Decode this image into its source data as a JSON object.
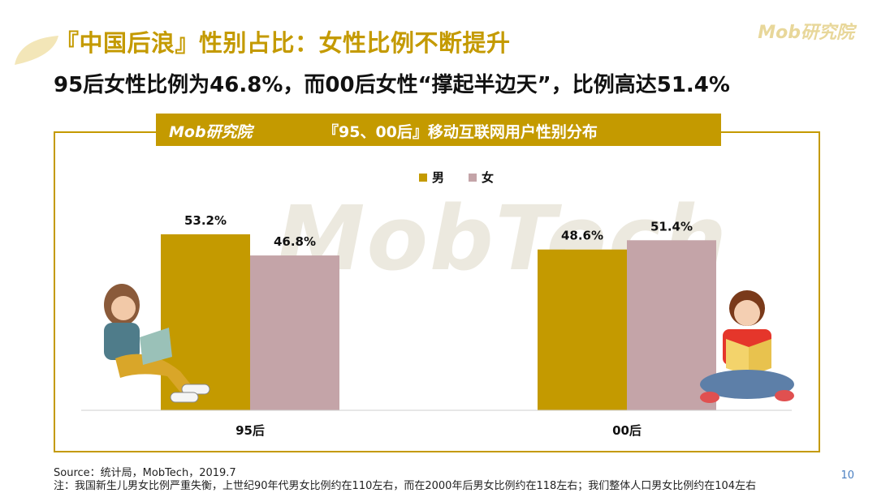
{
  "header": {
    "title": "『中国后浪』性别占比：女性比例不断提升",
    "subtitle": "95后女性比例为46.8%，而00后女性“撑起半边天”，比例高达51.4%",
    "logo": "Mob研究院"
  },
  "banner": {
    "logo": "Mob研究院",
    "title": "『95、00后』移动互联网用户性别分布"
  },
  "watermark": "MobTech",
  "colors": {
    "accent": "#c49a00",
    "male": "#c49a00",
    "female": "#c4a4a8"
  },
  "chart_data": {
    "type": "bar",
    "categories": [
      "95后",
      "00后"
    ],
    "series": [
      {
        "name": "男",
        "values": [
          53.2,
          48.6
        ],
        "labels": [
          "53.2%",
          "48.6%"
        ]
      },
      {
        "name": "女",
        "values": [
          46.8,
          51.4
        ],
        "labels": [
          "46.8%",
          "51.4%"
        ]
      }
    ],
    "legend": "top-center",
    "grid": false
  },
  "footer": {
    "source": "Source：统计局，MobTech，2019.7",
    "note": "注：我国新生儿男女比例严重失衡，上世纪90年代男女比例约在110左右，而在2000年后男女比例约在118左右；我们整体人口男女比例约在104左右",
    "page": "10"
  }
}
